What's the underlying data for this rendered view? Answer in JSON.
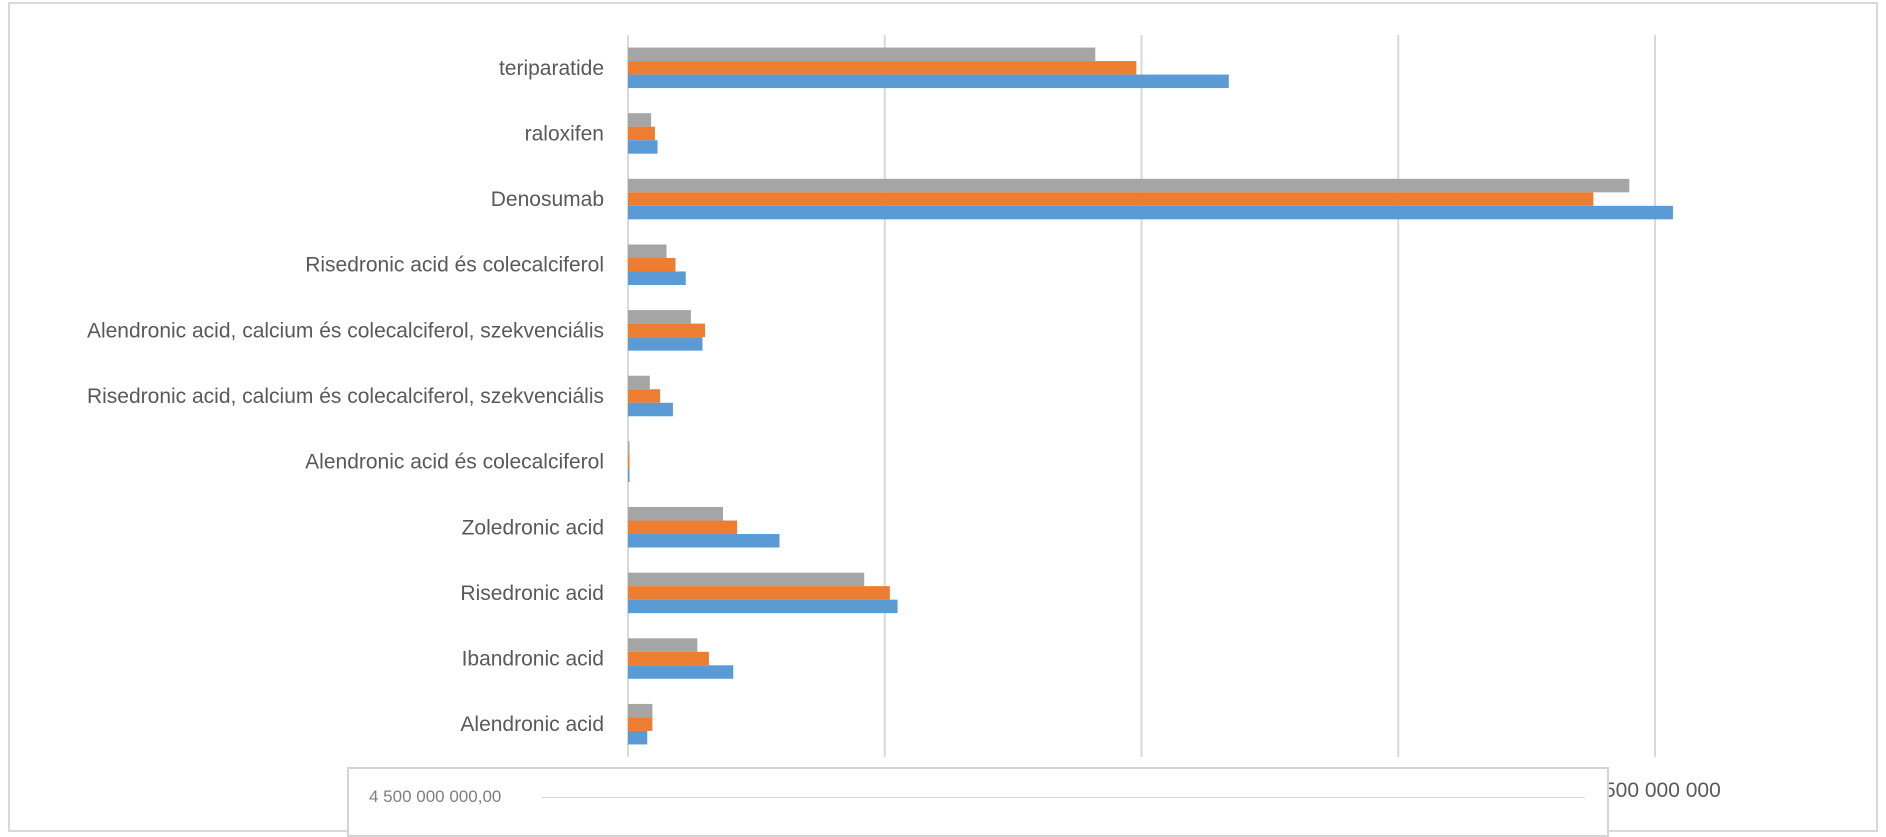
{
  "chart_data": {
    "type": "bar",
    "orientation": "horizontal",
    "categories": [
      "teriparatide",
      "raloxifen",
      "Denosumab",
      "Risedronic acid és colecalciferol",
      "Alendronic acid, calcium és colecalciferol, szekvenciális",
      "Risedronic acid, calcium és colecalciferol, szekvenciális",
      "Alendronic acid és colecalciferol",
      "Zoledronic acid",
      "Risedronic acid",
      "Ibandronic acid",
      "Alendronic acid"
    ],
    "series": [
      {
        "color": "#a5a5a5",
        "values": [
          1820000000,
          90000000,
          3900000000,
          150000000,
          245000000,
          85000000,
          5000000,
          370000000,
          920000000,
          270000000,
          95000000
        ]
      },
      {
        "color": "#ed7d31",
        "values": [
          1980000000,
          105000000,
          3760000000,
          185000000,
          300000000,
          125000000,
          5000000,
          425000000,
          1020000000,
          315000000,
          95000000
        ]
      },
      {
        "color": "#5b9bd5",
        "values": [
          2340000000,
          115000000,
          4070000000,
          225000000,
          290000000,
          175000000,
          6000000,
          590000000,
          1050000000,
          410000000,
          75000000
        ]
      }
    ],
    "xlim": [
      0,
      4000000000
    ],
    "x_gridlines": [
      0,
      1000000000,
      2000000000,
      3000000000,
      4000000000
    ],
    "visible_tick_label": "500 000 000",
    "grid": true
  },
  "overlay": {
    "label": "4 500 000 000,00"
  }
}
